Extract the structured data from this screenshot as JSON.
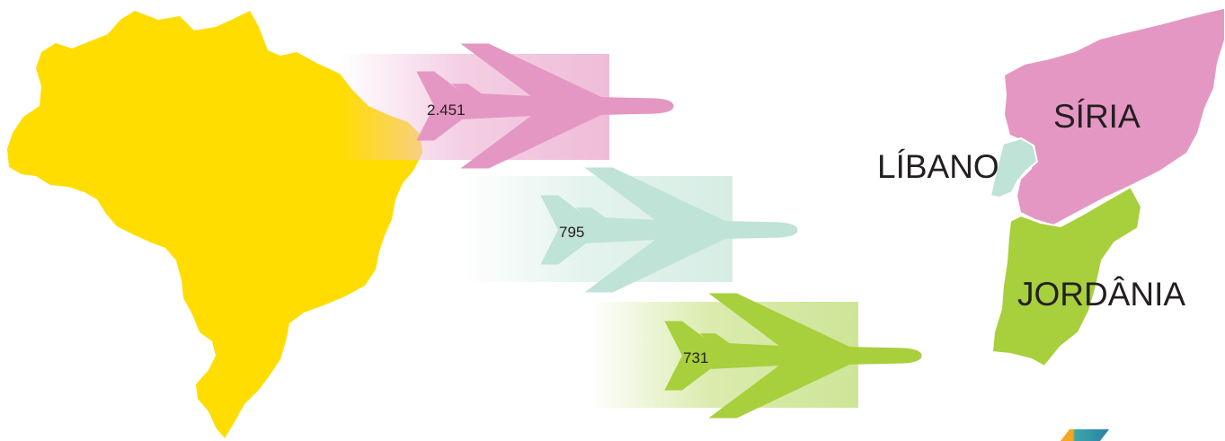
{
  "origin": {
    "name": "Brasil",
    "color": "#ffdd00"
  },
  "flows": [
    {
      "value": "2.451",
      "destination": "SÍRIA",
      "color": "#e597c3",
      "trail_color": "#f2c6df"
    },
    {
      "value": "795",
      "destination": "LÍBANO",
      "color": "#bfe3d6",
      "trail_color": "#dff1ea"
    },
    {
      "value": "731",
      "destination": "JORDÂNIA",
      "color": "#a8cf3c",
      "trail_color": "#d4e8a0"
    }
  ],
  "destinations": {
    "syria": {
      "label": "SÍRIA",
      "color": "#e597c3"
    },
    "lebanon": {
      "label": "LÍBANO",
      "color": "#bfe3d6"
    },
    "jordan": {
      "label": "JORDÂNIA",
      "color": "#a8cf3c"
    }
  },
  "logo": {
    "colors": [
      "#f5a623",
      "#3aa7a7",
      "#2d7fa8"
    ]
  }
}
